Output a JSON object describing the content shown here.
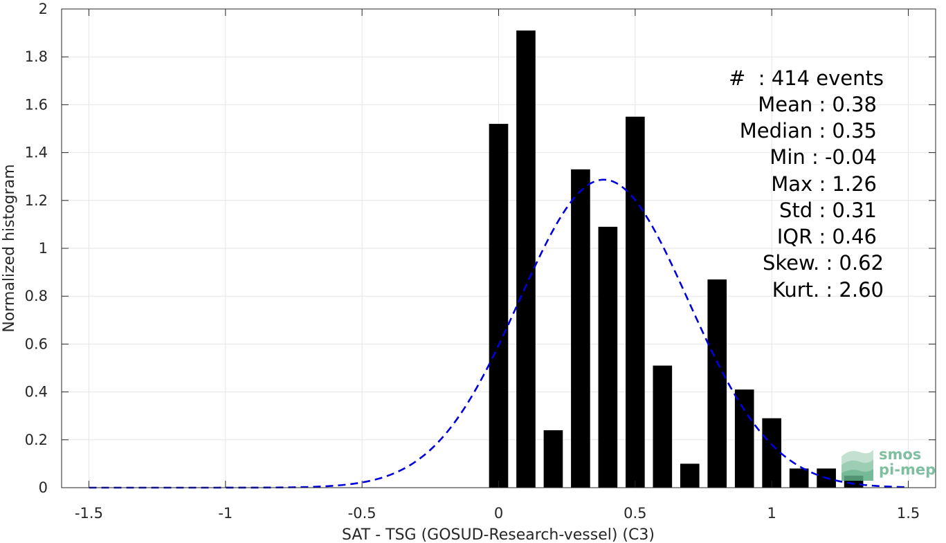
{
  "chart_data": {
    "type": "bar",
    "xlabel": "SAT - TSG (GOSUD-Research-vessel) (C3)",
    "ylabel": "Normalized histogram",
    "xlim": [
      -1.6,
      1.6
    ],
    "ylim": [
      0,
      2
    ],
    "xticks": [
      -1.5,
      -1,
      -0.5,
      0,
      0.5,
      1,
      1.5
    ],
    "xtick_labels": [
      "-1.5",
      "-1",
      "-0.5",
      "0",
      "0.5",
      "1",
      "1.5"
    ],
    "yticks": [
      0,
      0.2,
      0.4,
      0.6,
      0.8,
      1,
      1.2,
      1.4,
      1.6,
      1.8,
      2
    ],
    "ytick_labels": [
      "0",
      "0.2",
      "0.4",
      "0.6",
      "0.8",
      "1",
      "1.2",
      "1.4",
      "1.6",
      "1.8",
      "2"
    ],
    "grid": true,
    "bar_width": 0.07,
    "bar_color": "#000000",
    "bars": [
      {
        "x": 0.0,
        "y": 1.52
      },
      {
        "x": 0.1,
        "y": 1.91
      },
      {
        "x": 0.2,
        "y": 0.24
      },
      {
        "x": 0.3,
        "y": 1.33
      },
      {
        "x": 0.4,
        "y": 1.09
      },
      {
        "x": 0.5,
        "y": 1.55
      },
      {
        "x": 0.6,
        "y": 0.51
      },
      {
        "x": 0.7,
        "y": 0.1
      },
      {
        "x": 0.8,
        "y": 0.87
      },
      {
        "x": 0.9,
        "y": 0.41
      },
      {
        "x": 1.0,
        "y": 0.29
      },
      {
        "x": 1.1,
        "y": 0.08
      },
      {
        "x": 1.2,
        "y": 0.08
      },
      {
        "x": 1.3,
        "y": 0.05
      }
    ],
    "fit_curve": {
      "style": "dashed",
      "color": "#0000dd",
      "mean": 0.385,
      "std": 0.31,
      "x_range": [
        -1.5,
        1.5
      ]
    }
  },
  "stats_box": {
    "lines": [
      "#  : 414 events",
      "Mean : 0.38",
      "Median : 0.35",
      "Min : -0.04",
      "Max : 1.26",
      "Std : 0.31",
      "IQR : 0.46",
      "Skew. : 0.62",
      "Kurt. : 2.60"
    ]
  },
  "logo": {
    "line1": "smos",
    "line2": "pi-mep",
    "color": "#7fbf9f"
  }
}
